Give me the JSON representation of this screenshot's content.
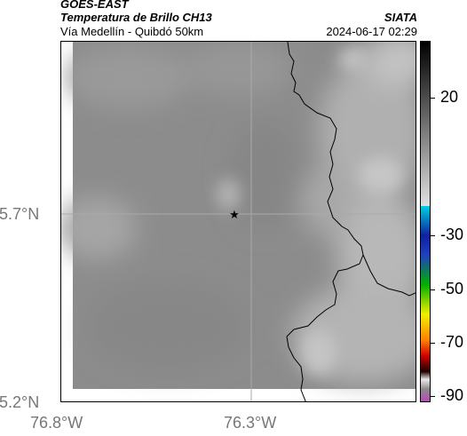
{
  "header": {
    "satellite": "GOES-EAST",
    "product": "Temperatura de Brillo CH13",
    "region": "Vía Medellín - Quibdó 50km",
    "brand": "SIATA",
    "datetime": "2024-06-17 02:29"
  },
  "map": {
    "lat_labels": [
      "5.7°N",
      "5.2°N"
    ],
    "lon_labels": [
      "76.8°W",
      "76.3°W"
    ],
    "marker": "star-marker",
    "background_color": "#8a8a8a"
  },
  "colorbar": {
    "tick_labels": [
      "20",
      "-30",
      "-50",
      "-70",
      "-90"
    ],
    "colors": {
      "top": "#000000",
      "warm_gray_end": "#d9d9d9",
      "cyan": "#00c8d8",
      "blue": "#1020a0",
      "green": "#00b000",
      "yellow": "#f0f000",
      "orange": "#ff8000",
      "red": "#d00000",
      "dark": "#300000",
      "magenta": "#c040c0"
    }
  }
}
